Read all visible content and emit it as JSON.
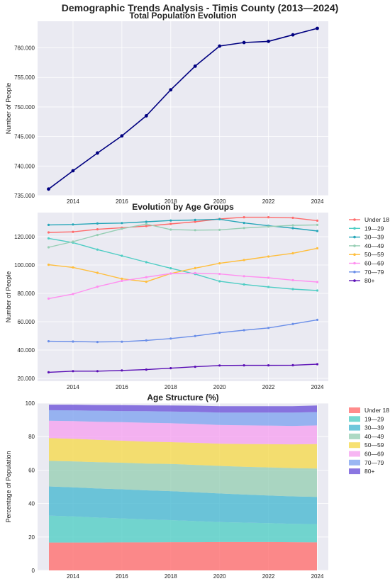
{
  "figure": {
    "title": "Demographic Trends Analysis - Timis County (2013—2024)"
  },
  "chart_data": [
    {
      "type": "line",
      "title": "Total Population Evolution",
      "xlabel": "",
      "ylabel": "Number of People",
      "x": [
        2013,
        2014,
        2015,
        2016,
        2017,
        2018,
        2019,
        2020,
        2021,
        2022,
        2023,
        2024
      ],
      "xticks": [
        2014,
        2016,
        2018,
        2020,
        2022,
        2024
      ],
      "yticks": [
        735000,
        740000,
        745000,
        750000,
        755000,
        760000
      ],
      "ytick_labels": [
        "735.000",
        "740.000",
        "745.000",
        "750.000",
        "755.000",
        "760.000"
      ],
      "ylim": [
        735000,
        764500
      ],
      "grid": true,
      "series": [
        {
          "color": "#000080",
          "values": [
            736100,
            739200,
            742200,
            745100,
            748500,
            752900,
            756900,
            760300,
            760900,
            761100,
            762200,
            763300
          ]
        }
      ]
    },
    {
      "type": "line",
      "title": "Evolution by Age Groups",
      "xlabel": "",
      "ylabel": "Number of People",
      "x": [
        2013,
        2014,
        2015,
        2016,
        2017,
        2018,
        2019,
        2020,
        2021,
        2022,
        2023,
        2024
      ],
      "xticks": [
        2014,
        2016,
        2018,
        2020,
        2022,
        2024
      ],
      "yticks": [
        20000,
        40000,
        60000,
        80000,
        100000,
        120000
      ],
      "ytick_labels": [
        "20.000",
        "40.000",
        "60.000",
        "80.000",
        "100.000",
        "120.000"
      ],
      "ylim": [
        18000,
        137000
      ],
      "grid": true,
      "legend": "outside-right",
      "series": [
        {
          "name": "Under 18",
          "color": "#ff6b6b",
          "values": [
            123000,
            123400,
            125200,
            126300,
            127500,
            129000,
            130500,
            132500,
            133700,
            133700,
            133300,
            131300
          ]
        },
        {
          "name": "19—29",
          "color": "#4ecdc4",
          "values": [
            118800,
            115800,
            110900,
            106500,
            102000,
            97700,
            93600,
            88500,
            86300,
            84500,
            83000,
            82000
          ]
        },
        {
          "name": "30—39",
          "color": "#26a6b8",
          "values": [
            128300,
            128600,
            129300,
            129600,
            130500,
            131400,
            131800,
            132300,
            129700,
            127700,
            126000,
            124000
          ]
        },
        {
          "name": "40—49",
          "color": "#96ceb4",
          "values": [
            112500,
            116500,
            121200,
            125600,
            128900,
            125000,
            124600,
            124800,
            126100,
            127100,
            128000,
            128300
          ]
        },
        {
          "name": "50—59",
          "color": "#ffbe3c",
          "values": [
            100200,
            98300,
            94500,
            90300,
            88200,
            94000,
            97800,
            101200,
            103500,
            106000,
            108300,
            111800
          ]
        },
        {
          "name": "60—69",
          "color": "#ff8ff0",
          "values": [
            76300,
            79500,
            84700,
            88800,
            91400,
            94000,
            94300,
            93700,
            92100,
            91000,
            89300,
            88000
          ]
        },
        {
          "name": "70—79",
          "color": "#6a8ee8",
          "values": [
            46200,
            46000,
            45700,
            45900,
            46800,
            48100,
            49900,
            52200,
            54000,
            55600,
            58400,
            61300
          ]
        },
        {
          "name": "80+",
          "color": "#5a0fb5",
          "values": [
            24300,
            25100,
            25100,
            25600,
            26200,
            27200,
            28200,
            29100,
            29200,
            29200,
            29300,
            30000
          ]
        }
      ]
    },
    {
      "type": "area",
      "title": "Age Structure (%)",
      "xlabel": "",
      "ylabel": "Percentage of Population",
      "x": [
        2013,
        2014,
        2015,
        2016,
        2017,
        2018,
        2019,
        2020,
        2021,
        2022,
        2023,
        2024
      ],
      "xticks": [
        2014,
        2016,
        2018,
        2020,
        2022,
        2024
      ],
      "yticks": [
        0,
        20,
        40,
        60,
        80,
        100
      ],
      "ylim": [
        0,
        100
      ],
      "stacked": true,
      "grid": true,
      "legend": "outside-right",
      "series": [
        {
          "name": "Under 18",
          "color": "#ff6b6b",
          "values": [
            16.7,
            16.7,
            16.7,
            16.8,
            16.8,
            16.9,
            16.9,
            17.0,
            17.0,
            17.0,
            16.9,
            16.8
          ]
        },
        {
          "name": "19—29",
          "color": "#4ecdc4",
          "values": [
            16.1,
            15.6,
            14.9,
            14.3,
            13.7,
            13.2,
            12.6,
            11.9,
            11.6,
            11.3,
            11.0,
            10.9
          ]
        },
        {
          "name": "30—39",
          "color": "#45b7d1",
          "values": [
            17.4,
            17.4,
            17.4,
            17.4,
            17.4,
            17.3,
            17.2,
            17.1,
            16.8,
            16.5,
            16.4,
            16.3
          ]
        },
        {
          "name": "40—49",
          "color": "#96ceb4",
          "values": [
            15.3,
            15.5,
            15.7,
            15.9,
            16.0,
            16.3,
            16.4,
            16.5,
            16.6,
            16.8,
            16.9,
            16.9
          ]
        },
        {
          "name": "50—59",
          "color": "#f5d84a",
          "values": [
            13.6,
            13.5,
            13.4,
            13.2,
            13.1,
            13.0,
            13.2,
            13.3,
            13.6,
            13.9,
            14.2,
            14.7
          ]
        },
        {
          "name": "60—69",
          "color": "#f5a0f0",
          "values": [
            10.4,
            10.6,
            10.8,
            11.1,
            11.3,
            11.3,
            11.3,
            11.2,
            11.2,
            11.1,
            11.0,
            11.1
          ]
        },
        {
          "name": "70—79",
          "color": "#7da2f0",
          "values": [
            6.3,
            6.4,
            6.6,
            6.6,
            6.9,
            7.0,
            7.2,
            7.4,
            7.6,
            7.8,
            8.0,
            8.0
          ]
        },
        {
          "name": "80+",
          "color": "#6a4fd8",
          "values": [
            3.3,
            3.4,
            3.4,
            3.5,
            3.5,
            3.6,
            3.7,
            3.8,
            3.8,
            3.8,
            3.8,
            3.9
          ]
        }
      ]
    }
  ]
}
